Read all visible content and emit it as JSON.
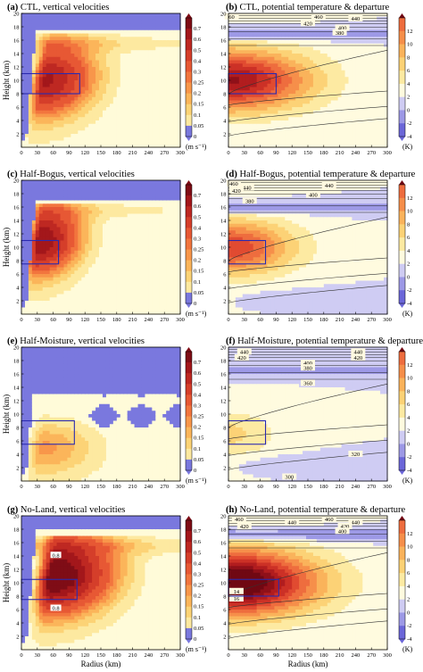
{
  "chart_data": [
    {
      "type": "heatmap",
      "panel_label": "(a)",
      "title": "CTL, vertical velocities",
      "ylabel": "Height (km)",
      "xlabel": "",
      "x_ticks": [
        0,
        30,
        60,
        90,
        120,
        150,
        180,
        210,
        240,
        270,
        300
      ],
      "y_ticks": [
        2,
        4,
        6,
        8,
        10,
        12,
        14,
        16,
        18,
        20
      ],
      "xlim": [
        0,
        300
      ],
      "ylim": [
        0,
        20
      ],
      "colorbar": {
        "ticks": [
          "0.7",
          "0.6",
          "0.5",
          "0.4",
          "0.3",
          "0.25",
          "0.2",
          "0.15",
          "0.1",
          "0.05",
          "0"
        ],
        "unit": "(m s⁻¹)"
      },
      "box": {
        "x": [
          0,
          110
        ],
        "y": [
          8,
          11
        ]
      },
      "field": {
        "core_r": 45,
        "core_z": 10,
        "peak": 0.62,
        "spread_r": 55,
        "spread_z": 5.2,
        "tilt": 2.2,
        "anvil": 0.12,
        "neg_top": 17.5,
        "neg_inner": 12,
        "neg_right": 300,
        "neg_bottom": 0
      },
      "contour_labels": []
    },
    {
      "type": "heatmap",
      "panel_label": "(b)",
      "title": "CTL, potential temperature & departure",
      "ylabel": "",
      "xlabel": "",
      "x_ticks": [
        0,
        30,
        60,
        90,
        120,
        150,
        180,
        210,
        240,
        270,
        300
      ],
      "y_ticks": [
        2,
        4,
        6,
        8,
        10,
        12,
        14,
        16,
        18,
        20
      ],
      "xlim": [
        0,
        300
      ],
      "ylim": [
        0,
        20
      ],
      "colorbar": {
        "ticks": [
          "12",
          "10",
          "8",
          "6",
          "4",
          "2",
          "0",
          "-2",
          "-4"
        ],
        "unit": "(K)"
      },
      "box": {
        "x": [
          0,
          90
        ],
        "y": [
          8,
          11
        ]
      },
      "field": {
        "warm_z": 10,
        "peak": 12,
        "spread_r": 150,
        "spread_z": 4.5,
        "cold_z": 17,
        "cold_amp": -4,
        "low_cold": 0
      },
      "isentropes": [
        "460",
        "440",
        "420",
        "400",
        "380",
        "360"
      ],
      "isentrope_labels": [
        {
          "text": "60",
          "x": 6,
          "y": 19.5
        },
        {
          "text": "460",
          "x": 170,
          "y": 19.5
        },
        {
          "text": "440",
          "x": 240,
          "y": 19.2
        },
        {
          "text": "420",
          "x": 150,
          "y": 18.5
        },
        {
          "text": "400",
          "x": 215,
          "y": 17.8
        },
        {
          "text": "380",
          "x": 210,
          "y": 17.1
        }
      ]
    },
    {
      "type": "heatmap",
      "panel_label": "(c)",
      "title": "Half-Bogus, vertical velocities",
      "ylabel": "Height (km)",
      "xlabel": "",
      "x_ticks": [
        0,
        30,
        60,
        90,
        120,
        150,
        180,
        210,
        240,
        270,
        300
      ],
      "y_ticks": [
        2,
        4,
        6,
        8,
        10,
        12,
        14,
        16,
        18,
        20
      ],
      "xlim": [
        0,
        300
      ],
      "ylim": [
        0,
        20
      ],
      "colorbar": {
        "ticks": [
          "0.7",
          "0.6",
          "0.5",
          "0.4",
          "0.3",
          "0.25",
          "0.2",
          "0.15",
          "0.1",
          "0.05",
          "0"
        ],
        "unit": "(m s⁻¹)"
      },
      "box": {
        "x": [
          0,
          70
        ],
        "y": [
          7.5,
          11
        ]
      },
      "field": {
        "core_r": 35,
        "core_z": 11,
        "peak": 0.7,
        "spread_r": 45,
        "spread_z": 5.0,
        "tilt": 2.0,
        "anvil": 0.1,
        "neg_top": 17.2,
        "neg_inner": 12,
        "neg_right": 300,
        "neg_bottom": 0
      },
      "contour_labels": []
    },
    {
      "type": "heatmap",
      "panel_label": "(d)",
      "title": "Half-Bogus, potential temperature & departure",
      "ylabel": "",
      "xlabel": "",
      "x_ticks": [
        0,
        30,
        60,
        90,
        120,
        150,
        180,
        210,
        240,
        270,
        300
      ],
      "y_ticks": [
        2,
        4,
        6,
        8,
        10,
        12,
        14,
        16,
        18,
        20
      ],
      "xlim": [
        0,
        300
      ],
      "ylim": [
        0,
        20
      ],
      "colorbar": {
        "ticks": [
          "12",
          "10",
          "8",
          "6",
          "4",
          "2",
          "0",
          "-2",
          "-4"
        ],
        "unit": "(K)"
      },
      "box": {
        "x": [
          0,
          70
        ],
        "y": [
          7.5,
          11
        ]
      },
      "field": {
        "warm_z": 10,
        "peak": 9,
        "spread_r": 120,
        "spread_z": 4.0,
        "cold_z": 16,
        "cold_amp": -4,
        "low_cold": -1
      },
      "isentropes": [
        "460",
        "440",
        "420",
        "400",
        "380",
        "360"
      ],
      "isentrope_labels": [
        {
          "text": "460",
          "x": 10,
          "y": 19.5
        },
        {
          "text": "440",
          "x": 190,
          "y": 19.2
        },
        {
          "text": "440",
          "x": 35,
          "y": 18.9
        },
        {
          "text": "420",
          "x": 15,
          "y": 18.4
        },
        {
          "text": "400",
          "x": 160,
          "y": 17.8
        },
        {
          "text": "380",
          "x": 40,
          "y": 16.9
        }
      ]
    },
    {
      "type": "heatmap",
      "panel_label": "(e)",
      "title": "Half-Moisture, vertical velocities",
      "ylabel": "Height (km)",
      "xlabel": "",
      "x_ticks": [
        0,
        30,
        60,
        90,
        120,
        150,
        180,
        210,
        240,
        270,
        300
      ],
      "y_ticks": [
        2,
        4,
        6,
        8,
        10,
        12,
        14,
        16,
        18,
        20
      ],
      "xlim": [
        0,
        300
      ],
      "ylim": [
        0,
        20
      ],
      "colorbar": {
        "ticks": [
          "0.7",
          "0.6",
          "0.5",
          "0.4",
          "0.3",
          "0.25",
          "0.2",
          "0.15",
          "0.1",
          "0.05",
          "0"
        ],
        "unit": "(m s⁻¹)"
      },
      "box": {
        "x": [
          0,
          100
        ],
        "y": [
          5.5,
          9
        ]
      },
      "field": {
        "core_r": 40,
        "core_z": 5,
        "peak": 0.2,
        "spread_r": 60,
        "spread_z": 4.0,
        "tilt": 1.0,
        "anvil": 0.04,
        "neg_top": 13,
        "neg_inner": 8,
        "neg_right": 300,
        "neg_bottom": 0
      },
      "contour_labels": []
    },
    {
      "type": "heatmap",
      "panel_label": "(f)",
      "title": "Half-Moisture, potential temperature & departure",
      "ylabel": "",
      "xlabel": "",
      "x_ticks": [
        0,
        30,
        60,
        90,
        120,
        150,
        180,
        210,
        240,
        270,
        300
      ],
      "y_ticks": [
        2,
        4,
        6,
        8,
        10,
        12,
        14,
        16,
        18,
        20
      ],
      "xlim": [
        0,
        300
      ],
      "ylim": [
        0,
        20
      ],
      "colorbar": {
        "ticks": [
          "12",
          "10",
          "8",
          "6",
          "4",
          "2",
          "0",
          "-2",
          "-4"
        ],
        "unit": "(K)"
      },
      "box": {
        "x": [
          0,
          70
        ],
        "y": [
          5.5,
          9
        ]
      },
      "field": {
        "warm_z": 7,
        "peak": 3,
        "spread_r": 90,
        "spread_z": 3.5,
        "cold_z": 16.5,
        "cold_amp": -3,
        "low_cold": -1.5
      },
      "isentropes": [
        "440",
        "420",
        "400",
        "380",
        "360",
        "320",
        "300"
      ],
      "isentrope_labels": [
        {
          "text": "440",
          "x": 30,
          "y": 19.3
        },
        {
          "text": "420",
          "x": 25,
          "y": 18.4
        },
        {
          "text": "400",
          "x": 150,
          "y": 17.6
        },
        {
          "text": "380",
          "x": 150,
          "y": 16.9
        },
        {
          "text": "360",
          "x": 150,
          "y": 14.6
        },
        {
          "text": "320",
          "x": 240,
          "y": 4.0
        },
        {
          "text": "300",
          "x": 115,
          "y": 0.6
        },
        {
          "text": "440",
          "x": 245,
          "y": 19.3
        },
        {
          "text": "420",
          "x": 245,
          "y": 18.4
        }
      ]
    },
    {
      "type": "heatmap",
      "panel_label": "(g)",
      "title": "No-Land, vertical velocities",
      "ylabel": "Height (km)",
      "xlabel": "Radius (km)",
      "x_ticks": [
        0,
        30,
        60,
        90,
        120,
        150,
        180,
        210,
        240,
        270,
        300
      ],
      "y_ticks": [
        2,
        4,
        6,
        8,
        10,
        12,
        14,
        16,
        18,
        20
      ],
      "xlim": [
        0,
        300
      ],
      "ylim": [
        0,
        20
      ],
      "colorbar": {
        "ticks": [
          "0.7",
          "0.6",
          "0.5",
          "0.4",
          "0.3",
          "0.25",
          "0.2",
          "0.15",
          "0.1",
          "0.05",
          "0"
        ],
        "unit": "(m s⁻¹)"
      },
      "box": {
        "x": [
          0,
          105
        ],
        "y": [
          7.5,
          10.5
        ]
      },
      "field": {
        "core_r": 60,
        "core_z": 11,
        "peak": 0.85,
        "spread_r": 65,
        "spread_z": 5.5,
        "tilt": 2.0,
        "anvil": 0.15,
        "neg_top": 17.8,
        "neg_inner": 12,
        "neg_right": 300,
        "neg_bottom": 0
      },
      "contour_labels": [
        {
          "text": "0.8",
          "x": 65,
          "y": 14.1
        },
        {
          "text": "0.8",
          "x": 65,
          "y": 6.2
        }
      ]
    },
    {
      "type": "heatmap",
      "panel_label": "(h)",
      "title": "No-Land, potential temperature & departure",
      "ylabel": "",
      "xlabel": "Radius (km)",
      "x_ticks": [
        0,
        30,
        60,
        90,
        120,
        150,
        180,
        210,
        240,
        270,
        300
      ],
      "y_ticks": [
        2,
        4,
        6,
        8,
        10,
        12,
        14,
        16,
        18,
        20
      ],
      "xlim": [
        0,
        300
      ],
      "ylim": [
        0,
        20
      ],
      "colorbar": {
        "ticks": [
          "12",
          "10",
          "8",
          "6",
          "4",
          "2",
          "0",
          "-2",
          "-4"
        ],
        "unit": "(K)"
      },
      "box": {
        "x": [
          0,
          95
        ],
        "y": [
          8,
          10.5
        ]
      },
      "field": {
        "warm_z": 10,
        "peak": 16,
        "spread_r": 160,
        "spread_z": 4.8,
        "cold_z": 17.2,
        "cold_amp": -4,
        "low_cold": 0
      },
      "isentropes": [
        "460",
        "440",
        "420",
        "400",
        "380",
        "360"
      ],
      "isentrope_labels": [
        {
          "text": "460",
          "x": 20,
          "y": 19.5
        },
        {
          "text": "460",
          "x": 190,
          "y": 19.5
        },
        {
          "text": "440",
          "x": 120,
          "y": 19.0
        },
        {
          "text": "440",
          "x": 240,
          "y": 19.0
        },
        {
          "text": "420",
          "x": 30,
          "y": 18.4
        },
        {
          "text": "420",
          "x": 220,
          "y": 18.4
        },
        {
          "text": "400",
          "x": 215,
          "y": 17.7
        },
        {
          "text": "14",
          "x": 15,
          "y": 8.7
        },
        {
          "text": "16",
          "x": 15,
          "y": 7.6
        }
      ]
    }
  ],
  "colors": {
    "negative": "#7a78de",
    "negative_light": "#aaa9ea",
    "w_scale": [
      "#fffbd9",
      "#fde9a0",
      "#fcd376",
      "#fbb55a",
      "#f8964a",
      "#f2753e",
      "#e75834",
      "#d53e2a",
      "#be2822",
      "#a3171b",
      "#7f0d16"
    ],
    "t_scale_neg": [
      "#6c67d9",
      "#9d99e6",
      "#cfccf3"
    ],
    "t_scale_pos": [
      "#fffbdf",
      "#fdeaa2",
      "#fcd276",
      "#fab35b",
      "#f68f4a",
      "#ee6d3e",
      "#e14b31",
      "#cc3126",
      "#b11d1f",
      "#8f1019",
      "#700813"
    ]
  }
}
